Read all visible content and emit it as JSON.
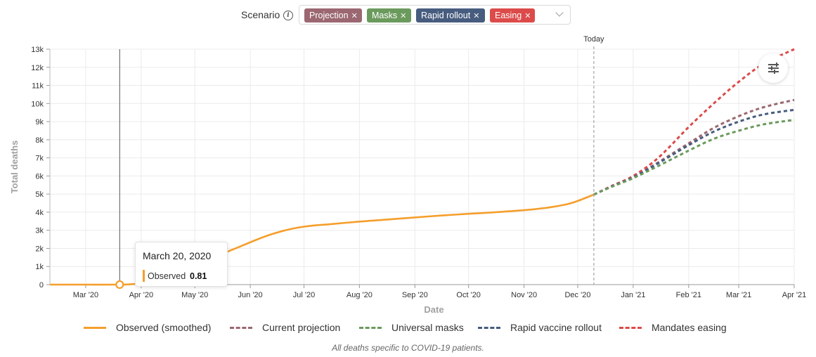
{
  "scenario": {
    "label": "Scenario",
    "info_icon": "info-icon",
    "tags": [
      {
        "label": "Projection",
        "color": "#9b6770"
      },
      {
        "label": "Masks",
        "color": "#6b9a5d"
      },
      {
        "label": "Rapid rollout",
        "color": "#475c7e"
      },
      {
        "label": "Easing",
        "color": "#dc4b4a"
      }
    ],
    "remove_icon": "close-icon",
    "dropdown_icon": "chevron-down-icon"
  },
  "settings_icon": "sliders-icon",
  "chart_data": {
    "type": "line",
    "ylabel": "Total deaths",
    "xlabel": "Date",
    "today_label": "Today",
    "today_date": "2020-12-10",
    "x_domain": [
      "2020-02-10",
      "2021-04-01"
    ],
    "ylim": [
      0,
      13000
    ],
    "y_ticks": [
      {
        "value": 0,
        "label": "0"
      },
      {
        "value": 1000,
        "label": "1k"
      },
      {
        "value": 2000,
        "label": "2k"
      },
      {
        "value": 3000,
        "label": "3k"
      },
      {
        "value": 4000,
        "label": "4k"
      },
      {
        "value": 5000,
        "label": "5k"
      },
      {
        "value": 6000,
        "label": "6k"
      },
      {
        "value": 7000,
        "label": "7k"
      },
      {
        "value": 8000,
        "label": "8k"
      },
      {
        "value": 9000,
        "label": "9k"
      },
      {
        "value": 10000,
        "label": "10k"
      },
      {
        "value": 11000,
        "label": "11k"
      },
      {
        "value": 12000,
        "label": "12k"
      },
      {
        "value": 13000,
        "label": "13k"
      }
    ],
    "x_ticks": [
      {
        "date": "2020-03-01",
        "label": "Mar '20"
      },
      {
        "date": "2020-04-01",
        "label": "Apr '20"
      },
      {
        "date": "2020-05-01",
        "label": "May '20"
      },
      {
        "date": "2020-06-01",
        "label": "Jun '20"
      },
      {
        "date": "2020-07-01",
        "label": "Jul '20"
      },
      {
        "date": "2020-08-01",
        "label": "Aug '20"
      },
      {
        "date": "2020-09-01",
        "label": "Sep '20"
      },
      {
        "date": "2020-10-01",
        "label": "Oct '20"
      },
      {
        "date": "2020-11-01",
        "label": "Nov '20"
      },
      {
        "date": "2020-12-01",
        "label": "Dec '20"
      },
      {
        "date": "2021-01-01",
        "label": "Jan '21"
      },
      {
        "date": "2021-02-01",
        "label": "Feb '21"
      },
      {
        "date": "2021-03-01",
        "label": "Mar '21"
      },
      {
        "date": "2021-04-01",
        "label": "Apr '21"
      }
    ],
    "grid": true,
    "legend_position": "bottom",
    "series": [
      {
        "name": "Observed (smoothed)",
        "color": "#f59e2c",
        "dashed": false,
        "points": [
          [
            "2020-02-10",
            0
          ],
          [
            "2020-03-01",
            0
          ],
          [
            "2020-03-20",
            0.81
          ],
          [
            "2020-03-28",
            30
          ],
          [
            "2020-04-05",
            150
          ],
          [
            "2020-04-15",
            450
          ],
          [
            "2020-04-25",
            850
          ],
          [
            "2020-05-05",
            1250
          ],
          [
            "2020-05-15",
            1650
          ],
          [
            "2020-05-25",
            2050
          ],
          [
            "2020-06-05",
            2500
          ],
          [
            "2020-06-15",
            2850
          ],
          [
            "2020-06-25",
            3100
          ],
          [
            "2020-07-05",
            3250
          ],
          [
            "2020-07-15",
            3330
          ],
          [
            "2020-08-01",
            3480
          ],
          [
            "2020-08-15",
            3580
          ],
          [
            "2020-09-01",
            3710
          ],
          [
            "2020-09-15",
            3810
          ],
          [
            "2020-10-01",
            3910
          ],
          [
            "2020-10-15",
            3990
          ],
          [
            "2020-11-01",
            4110
          ],
          [
            "2020-11-15",
            4260
          ],
          [
            "2020-11-25",
            4440
          ],
          [
            "2020-12-01",
            4620
          ],
          [
            "2020-12-10",
            4970
          ]
        ]
      },
      {
        "name": "Current projection",
        "color": "#9b6770",
        "dashed": true,
        "points": [
          [
            "2020-12-10",
            4970
          ],
          [
            "2020-12-20",
            5420
          ],
          [
            "2021-01-01",
            5920
          ],
          [
            "2021-01-15",
            6750
          ],
          [
            "2021-02-01",
            7800
          ],
          [
            "2021-02-15",
            8650
          ],
          [
            "2021-03-01",
            9300
          ],
          [
            "2021-03-15",
            9800
          ],
          [
            "2021-04-01",
            10200
          ]
        ]
      },
      {
        "name": "Universal masks",
        "color": "#6b9a5d",
        "dashed": true,
        "points": [
          [
            "2020-12-10",
            4970
          ],
          [
            "2020-12-20",
            5400
          ],
          [
            "2021-01-01",
            5880
          ],
          [
            "2021-01-15",
            6550
          ],
          [
            "2021-02-01",
            7400
          ],
          [
            "2021-02-15",
            8050
          ],
          [
            "2021-03-01",
            8500
          ],
          [
            "2021-03-15",
            8850
          ],
          [
            "2021-04-01",
            9100
          ]
        ]
      },
      {
        "name": "Rapid vaccine rollout",
        "color": "#475c7e",
        "dashed": true,
        "points": [
          [
            "2020-12-10",
            4970
          ],
          [
            "2020-12-20",
            5420
          ],
          [
            "2021-01-01",
            5920
          ],
          [
            "2021-01-15",
            6700
          ],
          [
            "2021-02-01",
            7700
          ],
          [
            "2021-02-15",
            8450
          ],
          [
            "2021-03-01",
            9000
          ],
          [
            "2021-03-15",
            9400
          ],
          [
            "2021-04-01",
            9650
          ]
        ]
      },
      {
        "name": "Mandates easing",
        "color": "#dc4b4a",
        "dashed": true,
        "points": [
          [
            "2020-12-10",
            4970
          ],
          [
            "2020-12-20",
            5450
          ],
          [
            "2021-01-01",
            6000
          ],
          [
            "2021-01-15",
            7000
          ],
          [
            "2021-02-01",
            8700
          ],
          [
            "2021-02-15",
            10000
          ],
          [
            "2021-03-01",
            11200
          ],
          [
            "2021-03-15",
            12200
          ],
          [
            "2021-04-01",
            13000
          ]
        ]
      }
    ]
  },
  "tooltip": {
    "date": "March 20, 2020",
    "series": "Observed",
    "value": "0.81",
    "x_date": "2020-03-20",
    "y_value": 0.81
  },
  "footnote": "All deaths specific to COVID-19 patients."
}
